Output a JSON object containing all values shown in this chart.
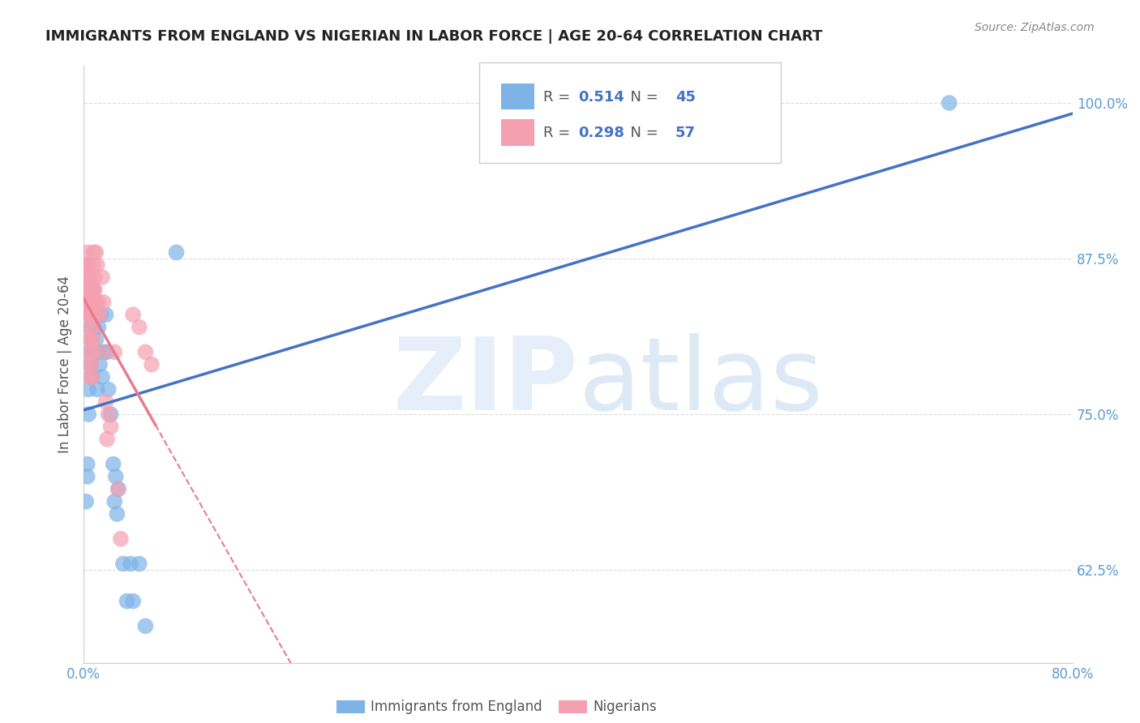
{
  "title": "IMMIGRANTS FROM ENGLAND VS NIGERIAN IN LABOR FORCE | AGE 20-64 CORRELATION CHART",
  "source": "Source: ZipAtlas.com",
  "xlabel": "",
  "ylabel": "In Labor Force | Age 20-64",
  "xlim": [
    0.0,
    0.8
  ],
  "ylim": [
    0.55,
    1.03
  ],
  "xticks": [
    0.0,
    0.1,
    0.2,
    0.3,
    0.4,
    0.5,
    0.6,
    0.7,
    0.8
  ],
  "xticklabels": [
    "0.0%",
    "",
    "",
    "",
    "",
    "",
    "",
    "",
    "80.0%"
  ],
  "yticks": [
    0.625,
    0.75,
    0.875,
    1.0
  ],
  "yticklabels": [
    "62.5%",
    "75.0%",
    "87.5%",
    "100.0%"
  ],
  "R_england": 0.514,
  "N_england": 45,
  "R_nigeria": 0.298,
  "N_nigeria": 57,
  "england_color": "#7eb3e8",
  "nigeria_color": "#f5a0b0",
  "england_scatter": [
    [
      0.002,
      0.68
    ],
    [
      0.003,
      0.7
    ],
    [
      0.003,
      0.71
    ],
    [
      0.004,
      0.75
    ],
    [
      0.004,
      0.77
    ],
    [
      0.005,
      0.79
    ],
    [
      0.005,
      0.8
    ],
    [
      0.005,
      0.82
    ],
    [
      0.006,
      0.78
    ],
    [
      0.006,
      0.79
    ],
    [
      0.006,
      0.81
    ],
    [
      0.006,
      0.83
    ],
    [
      0.007,
      0.78
    ],
    [
      0.007,
      0.8
    ],
    [
      0.007,
      0.83
    ],
    [
      0.007,
      0.85
    ],
    [
      0.008,
      0.8
    ],
    [
      0.008,
      0.82
    ],
    [
      0.009,
      0.83
    ],
    [
      0.01,
      0.81
    ],
    [
      0.01,
      0.84
    ],
    [
      0.011,
      0.77
    ],
    [
      0.012,
      0.8
    ],
    [
      0.012,
      0.82
    ],
    [
      0.013,
      0.79
    ],
    [
      0.014,
      0.83
    ],
    [
      0.015,
      0.78
    ],
    [
      0.016,
      0.8
    ],
    [
      0.018,
      0.83
    ],
    [
      0.019,
      0.8
    ],
    [
      0.02,
      0.77
    ],
    [
      0.022,
      0.75
    ],
    [
      0.024,
      0.71
    ],
    [
      0.025,
      0.68
    ],
    [
      0.026,
      0.7
    ],
    [
      0.027,
      0.67
    ],
    [
      0.028,
      0.69
    ],
    [
      0.032,
      0.63
    ],
    [
      0.035,
      0.6
    ],
    [
      0.038,
      0.63
    ],
    [
      0.04,
      0.6
    ],
    [
      0.045,
      0.63
    ],
    [
      0.05,
      0.58
    ],
    [
      0.075,
      0.88
    ],
    [
      0.7,
      1.0
    ]
  ],
  "nigeria_scatter": [
    [
      0.002,
      0.87
    ],
    [
      0.002,
      0.85
    ],
    [
      0.003,
      0.88
    ],
    [
      0.003,
      0.87
    ],
    [
      0.003,
      0.86
    ],
    [
      0.003,
      0.84
    ],
    [
      0.004,
      0.87
    ],
    [
      0.004,
      0.86
    ],
    [
      0.004,
      0.85
    ],
    [
      0.004,
      0.84
    ],
    [
      0.004,
      0.83
    ],
    [
      0.005,
      0.86
    ],
    [
      0.005,
      0.85
    ],
    [
      0.005,
      0.84
    ],
    [
      0.005,
      0.83
    ],
    [
      0.005,
      0.82
    ],
    [
      0.005,
      0.81
    ],
    [
      0.005,
      0.8
    ],
    [
      0.005,
      0.79
    ],
    [
      0.005,
      0.78
    ],
    [
      0.006,
      0.85
    ],
    [
      0.006,
      0.84
    ],
    [
      0.006,
      0.83
    ],
    [
      0.006,
      0.81
    ],
    [
      0.006,
      0.79
    ],
    [
      0.007,
      0.84
    ],
    [
      0.007,
      0.83
    ],
    [
      0.007,
      0.82
    ],
    [
      0.007,
      0.81
    ],
    [
      0.007,
      0.8
    ],
    [
      0.007,
      0.78
    ],
    [
      0.008,
      0.88
    ],
    [
      0.008,
      0.87
    ],
    [
      0.008,
      0.85
    ],
    [
      0.008,
      0.84
    ],
    [
      0.008,
      0.83
    ],
    [
      0.009,
      0.86
    ],
    [
      0.009,
      0.85
    ],
    [
      0.01,
      0.88
    ],
    [
      0.01,
      0.83
    ],
    [
      0.011,
      0.87
    ],
    [
      0.012,
      0.84
    ],
    [
      0.013,
      0.83
    ],
    [
      0.014,
      0.8
    ],
    [
      0.015,
      0.86
    ],
    [
      0.016,
      0.84
    ],
    [
      0.018,
      0.76
    ],
    [
      0.019,
      0.73
    ],
    [
      0.02,
      0.75
    ],
    [
      0.022,
      0.74
    ],
    [
      0.025,
      0.8
    ],
    [
      0.028,
      0.69
    ],
    [
      0.03,
      0.65
    ],
    [
      0.04,
      0.83
    ],
    [
      0.045,
      0.82
    ],
    [
      0.05,
      0.8
    ],
    [
      0.055,
      0.79
    ]
  ],
  "watermark_zip": "ZIP",
  "watermark_atlas": "atlas",
  "legend_england": "Immigrants from England",
  "legend_nigeria": "Nigerians",
  "background_color": "#ffffff",
  "grid_color": "#cccccc",
  "trend_blue": "#4472c4",
  "trend_pink": "#e87c8a",
  "tick_color": "#5b9bd5",
  "title_color": "#222222",
  "source_color": "#888888",
  "label_color": "#555555"
}
